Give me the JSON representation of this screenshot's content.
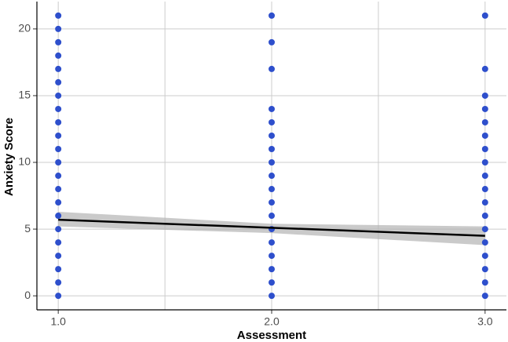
{
  "chart_data": {
    "type": "scatter",
    "x_label": "Assessment",
    "y_label": "Anxiety Score",
    "xlim": [
      0.9,
      3.1
    ],
    "ylim": [
      -1.05,
      22.05
    ],
    "xticks": [
      {
        "value": 1,
        "label": "1.0"
      },
      {
        "value": 2,
        "label": "2.0"
      },
      {
        "value": 3,
        "label": "3.0"
      }
    ],
    "xminor": [
      1.5,
      2.5
    ],
    "yticks": [
      0,
      5,
      10,
      15,
      20
    ],
    "grid": true,
    "series": [
      {
        "color": "#2e4fcc",
        "x": [
          1,
          1,
          1,
          1,
          1,
          1,
          1,
          1,
          1,
          1,
          1,
          1,
          1,
          1,
          1,
          1,
          1,
          1,
          1,
          1,
          1,
          1,
          2,
          2,
          2,
          2,
          2,
          2,
          2,
          2,
          2,
          2,
          2,
          2,
          2,
          2,
          2,
          2,
          2,
          2,
          3,
          3,
          3,
          3,
          3,
          3,
          3,
          3,
          3,
          3,
          3,
          3,
          3,
          3,
          3,
          3,
          3,
          3
        ],
        "y": [
          0,
          1,
          2,
          3,
          4,
          5,
          6,
          7,
          8,
          9,
          10,
          11,
          12,
          13,
          14,
          15,
          16,
          17,
          18,
          19,
          20,
          21,
          0,
          1,
          2,
          3,
          4,
          5,
          6,
          7,
          8,
          9,
          10,
          11,
          12,
          13,
          14,
          17,
          19,
          21,
          0,
          1,
          2,
          3,
          4,
          5,
          6,
          7,
          8,
          9,
          10,
          11,
          12,
          13,
          14,
          15,
          17,
          21
        ]
      }
    ],
    "fit": {
      "color": "#000000",
      "x": [
        1,
        3
      ],
      "y": [
        5.7,
        4.5
      ]
    },
    "band": {
      "color": "#b3b3b3",
      "x": [
        1,
        2,
        3
      ],
      "lower": [
        5.2,
        4.7,
        3.8
      ],
      "upper": [
        6.3,
        5.4,
        5.2
      ]
    }
  }
}
